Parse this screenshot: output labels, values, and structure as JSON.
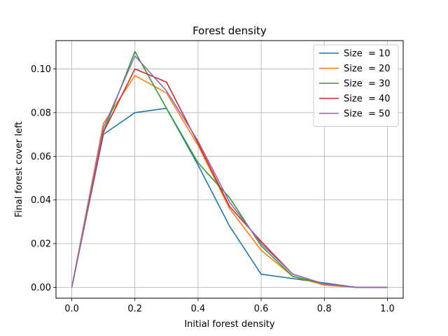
{
  "chart_data": {
    "type": "line",
    "title": "Forest density",
    "xlabel": "Initial forest density",
    "ylabel": "Final forest cover left",
    "x": [
      0.0,
      0.1,
      0.2,
      0.3,
      0.4,
      0.5,
      0.6,
      0.7,
      0.8,
      0.9,
      1.0
    ],
    "xlim": [
      -0.05,
      1.05
    ],
    "ylim": [
      -0.005,
      0.113
    ],
    "xticks": [
      "0.0",
      "0.2",
      "0.4",
      "0.6",
      "0.8",
      "1.0"
    ],
    "yticks": [
      "0.00",
      "0.02",
      "0.04",
      "0.06",
      "0.08",
      "0.10"
    ],
    "grid": true,
    "legend_position": "top-right",
    "series": [
      {
        "name": "Size  = 10",
        "color": "#1f77b4",
        "values": [
          0.0,
          0.07,
          0.08,
          0.082,
          0.056,
          0.028,
          0.006,
          0.004,
          0.002,
          0.0,
          0.0
        ]
      },
      {
        "name": "Size  = 20",
        "color": "#ff7f0e",
        "values": [
          0.0,
          0.075,
          0.097,
          0.089,
          0.065,
          0.036,
          0.017,
          0.005,
          0.001,
          0.0,
          0.0
        ]
      },
      {
        "name": "Size  = 30",
        "color": "#2ca02c",
        "values": [
          0.0,
          0.071,
          0.108,
          0.082,
          0.057,
          0.041,
          0.019,
          0.005,
          0.0015,
          0.0,
          0.0
        ]
      },
      {
        "name": "Size  = 40",
        "color": "#d62728",
        "values": [
          0.0,
          0.071,
          0.1,
          0.094,
          0.066,
          0.037,
          0.021,
          0.006,
          0.0015,
          0.0,
          0.0
        ]
      },
      {
        "name": "Size  = 50",
        "color": "#9467bd",
        "values": [
          0.0,
          0.073,
          0.106,
          0.09,
          0.067,
          0.039,
          0.02,
          0.006,
          0.0015,
          0.0,
          0.0
        ]
      }
    ]
  }
}
